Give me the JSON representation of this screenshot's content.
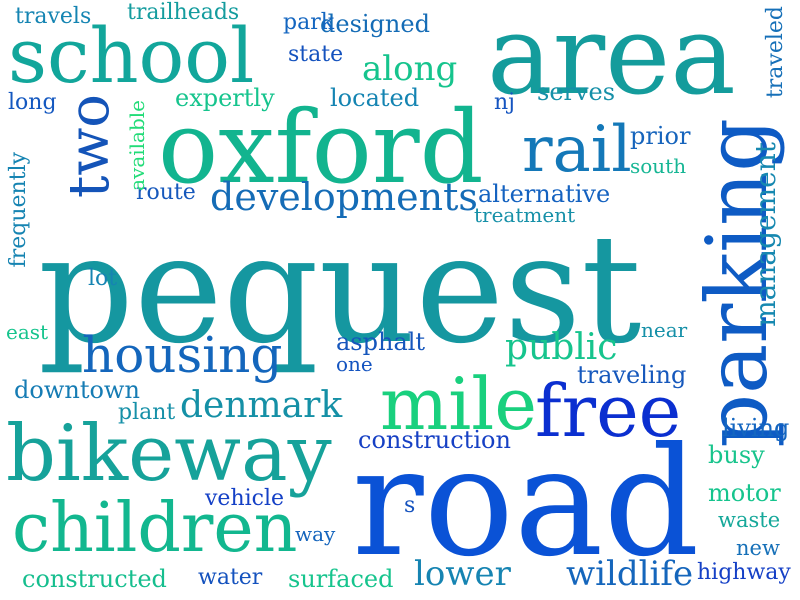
{
  "words": [
    {
      "text": "pequest",
      "color": "#1597a0"
    },
    {
      "text": "road",
      "color": "#0a52d6"
    },
    {
      "text": "oxford",
      "color": "#12b48f"
    },
    {
      "text": "area",
      "color": "#149c9c"
    },
    {
      "text": "parking",
      "color": "#0e5bc4"
    },
    {
      "text": "bikeway",
      "color": "#16a29a"
    },
    {
      "text": "school",
      "color": "#12a69b"
    },
    {
      "text": "children",
      "color": "#12b78f"
    },
    {
      "text": "free",
      "color": "#0b2fd0"
    },
    {
      "text": "mile",
      "color": "#19d07e"
    },
    {
      "text": "housing",
      "color": "#1466bc"
    },
    {
      "text": "rail",
      "color": "#1478b8"
    },
    {
      "text": "two",
      "color": "#1454b8"
    },
    {
      "text": "developments",
      "color": "#156cb6"
    },
    {
      "text": "denmark",
      "color": "#1590a6"
    },
    {
      "text": "public",
      "color": "#16c48d"
    },
    {
      "text": "management",
      "color": "#1688b0"
    },
    {
      "text": "wildlife",
      "color": "#1566bc"
    },
    {
      "text": "lower",
      "color": "#1684b2"
    },
    {
      "text": "along",
      "color": "#16c48d"
    },
    {
      "text": "construction",
      "color": "#1640c4"
    },
    {
      "text": "alternative",
      "color": "#1462c0"
    },
    {
      "text": "downtown",
      "color": "#167cb4"
    },
    {
      "text": "constructed",
      "color": "#16be8e"
    },
    {
      "text": "surfaced",
      "color": "#16c48d"
    },
    {
      "text": "asphalt",
      "color": "#1556bc"
    },
    {
      "text": "traveling",
      "color": "#1658bc"
    },
    {
      "text": "living",
      "color": "#1466c0"
    },
    {
      "text": "busy",
      "color": "#18c48c"
    },
    {
      "text": "motor",
      "color": "#16c48d"
    },
    {
      "text": "waste",
      "color": "#16a89a"
    },
    {
      "text": "new",
      "color": "#1670b8"
    },
    {
      "text": "highway",
      "color": "#1540c6"
    },
    {
      "text": "designed",
      "color": "#156cb6"
    },
    {
      "text": "located",
      "color": "#1484b2"
    },
    {
      "text": "expertly",
      "color": "#16c48d"
    },
    {
      "text": "prior",
      "color": "#1664bc"
    },
    {
      "text": "south",
      "color": "#16b694"
    },
    {
      "text": "serves",
      "color": "#1690a8"
    },
    {
      "text": "treatment",
      "color": "#1690a8"
    },
    {
      "text": "route",
      "color": "#1658bc"
    },
    {
      "text": "state",
      "color": "#1452be"
    },
    {
      "text": "park",
      "color": "#1466c0"
    },
    {
      "text": "trailheads",
      "color": "#149c9e"
    },
    {
      "text": "travels",
      "color": "#1484b2"
    },
    {
      "text": "long",
      "color": "#1458c0"
    },
    {
      "text": "frequently",
      "color": "#1684b2"
    },
    {
      "text": "available",
      "color": "#22dc78"
    },
    {
      "text": "traveled",
      "color": "#1670b8"
    },
    {
      "text": "nj",
      "color": "#1454c0"
    },
    {
      "text": "lot",
      "color": "#1684b2"
    },
    {
      "text": "east",
      "color": "#16c48d"
    },
    {
      "text": "near",
      "color": "#1690a8"
    },
    {
      "text": "one",
      "color": "#1454c0"
    },
    {
      "text": "plant",
      "color": "#1690a8"
    },
    {
      "text": "vehicle",
      "color": "#1440c6"
    },
    {
      "text": "way",
      "color": "#1464bc"
    },
    {
      "text": "s",
      "color": "#1452be"
    },
    {
      "text": "water",
      "color": "#1452be"
    }
  ]
}
